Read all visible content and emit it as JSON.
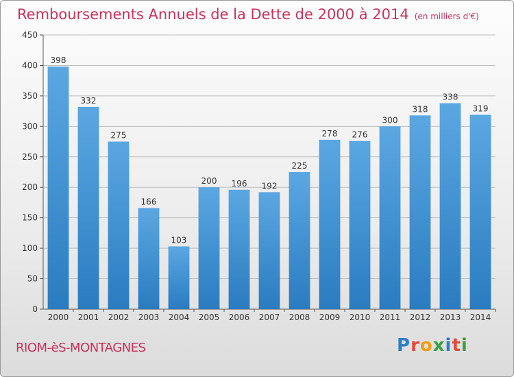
{
  "title": "Remboursements Annuels de la Dette de 2000 à 2014",
  "unit": "(en milliers d'€)",
  "commune": "RIOM-èS-MONTAGNES",
  "logo": {
    "text": "Proxiti",
    "letters": [
      "P",
      "r",
      "o",
      "x",
      "i",
      "t",
      "i"
    ]
  },
  "colors": {
    "title": "#c8325a",
    "bar_light": "#5ba7e2",
    "bar_dark": "#2a7cc0",
    "grid": "#bdbdbd"
  },
  "chart_data": {
    "type": "bar",
    "title": "Remboursements Annuels de la Dette de 2000 à 2014",
    "subtitle": "(en milliers d'€)",
    "xlabel": "",
    "ylabel": "",
    "categories": [
      "2000",
      "2001",
      "2002",
      "2003",
      "2004",
      "2005",
      "2006",
      "2007",
      "2008",
      "2009",
      "2010",
      "2011",
      "2012",
      "2013",
      "2014"
    ],
    "values": [
      398,
      332,
      275,
      166,
      103,
      200,
      196,
      192,
      225,
      278,
      276,
      300,
      318,
      338,
      319
    ],
    "ylim": [
      0,
      450
    ],
    "yticks": [
      0,
      50,
      100,
      150,
      200,
      250,
      300,
      350,
      400,
      450
    ],
    "grid": true,
    "data_labels": true
  }
}
